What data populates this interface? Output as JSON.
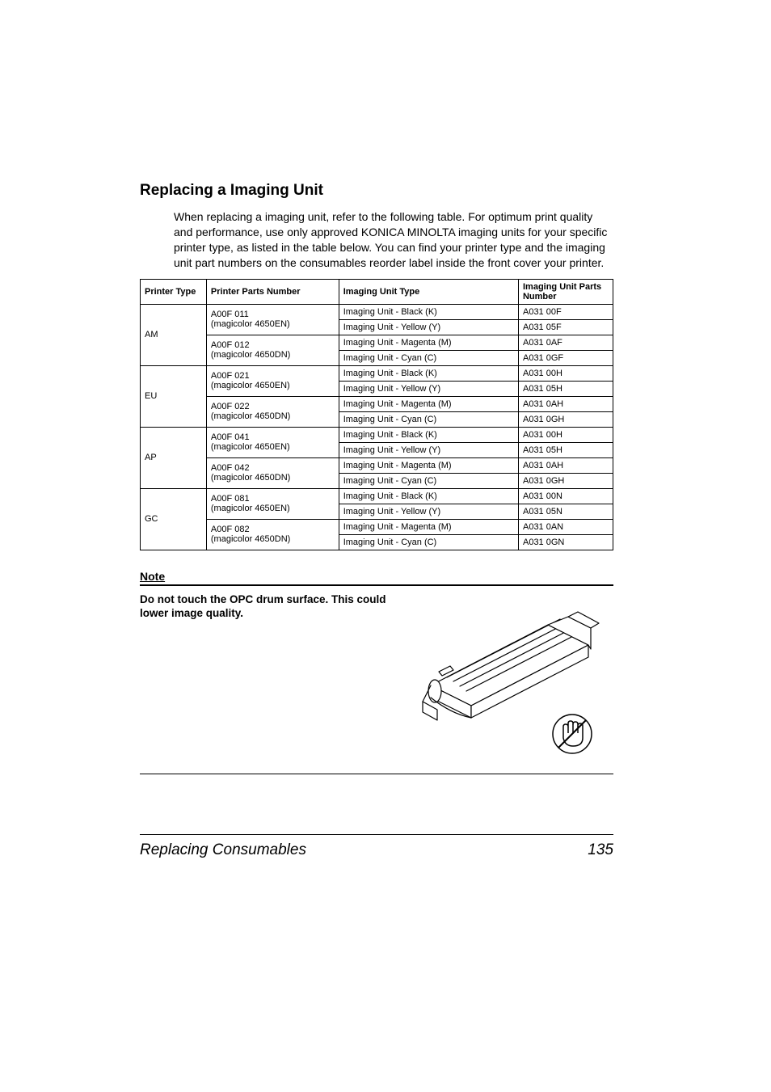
{
  "heading": "Replacing a Imaging Unit",
  "paragraph": "When replacing a imaging unit, refer to the following table. For optimum print quality and performance, use only approved KONICA MINOLTA imaging units for your specific printer type, as listed in the table below. You can find your printer type and the imaging unit part numbers on the consumables reorder label inside the front cover your printer.",
  "table": {
    "headers": {
      "col1": "Printer Type",
      "col2": "Printer Parts Number",
      "col3": "Imaging Unit Type",
      "col4": "Imaging Unit Parts Number"
    },
    "groups": [
      {
        "printerType": "AM",
        "partsNumbers": [
          "A00F 011 (magicolor 4650EN)",
          "A00F 012 (magicolor 4650DN)"
        ],
        "rows": [
          {
            "unitType": "Imaging Unit - Black (K)",
            "partsNumber": "A031 00F"
          },
          {
            "unitType": "Imaging Unit - Yellow (Y)",
            "partsNumber": "A031 05F"
          },
          {
            "unitType": "Imaging Unit - Magenta (M)",
            "partsNumber": "A031 0AF"
          },
          {
            "unitType": "Imaging Unit - Cyan (C)",
            "partsNumber": "A031 0GF"
          }
        ]
      },
      {
        "printerType": "EU",
        "partsNumbers": [
          "A00F 021 (magicolor 4650EN)",
          "A00F 022 (magicolor 4650DN)"
        ],
        "rows": [
          {
            "unitType": "Imaging Unit - Black (K)",
            "partsNumber": "A031 00H"
          },
          {
            "unitType": "Imaging Unit - Yellow (Y)",
            "partsNumber": "A031 05H"
          },
          {
            "unitType": "Imaging Unit - Magenta (M)",
            "partsNumber": "A031 0AH"
          },
          {
            "unitType": "Imaging Unit - Cyan (C)",
            "partsNumber": "A031 0GH"
          }
        ]
      },
      {
        "printerType": "AP",
        "partsNumbers": [
          "A00F 041 (magicolor 4650EN)",
          "A00F 042 (magicolor 4650DN)"
        ],
        "rows": [
          {
            "unitType": "Imaging Unit - Black (K)",
            "partsNumber": "A031 00H"
          },
          {
            "unitType": "Imaging Unit - Yellow (Y)",
            "partsNumber": "A031 05H"
          },
          {
            "unitType": "Imaging Unit - Magenta (M)",
            "partsNumber": "A031 0AH"
          },
          {
            "unitType": "Imaging Unit - Cyan (C)",
            "partsNumber": "A031 0GH"
          }
        ]
      },
      {
        "printerType": "GC",
        "partsNumbers": [
          "A00F 081 (magicolor 4650EN)",
          "A00F 082 (magicolor 4650DN)"
        ],
        "rows": [
          {
            "unitType": "Imaging Unit - Black (K)",
            "partsNumber": "A031 00N"
          },
          {
            "unitType": "Imaging Unit - Yellow (Y)",
            "partsNumber": "A031 05N"
          },
          {
            "unitType": "Imaging Unit - Magenta (M)",
            "partsNumber": "A031 0AN"
          },
          {
            "unitType": "Imaging Unit - Cyan (C)",
            "partsNumber": "A031 0GN"
          }
        ]
      }
    ]
  },
  "note": {
    "heading": "Note",
    "text": "Do not touch the OPC drum surface. This could lower image quality."
  },
  "footer": {
    "title": "Replacing Consumables",
    "page": "135"
  },
  "diagram": {
    "stroke": "#000000",
    "strokeWidth": 1.2,
    "fill": "#ffffff"
  }
}
